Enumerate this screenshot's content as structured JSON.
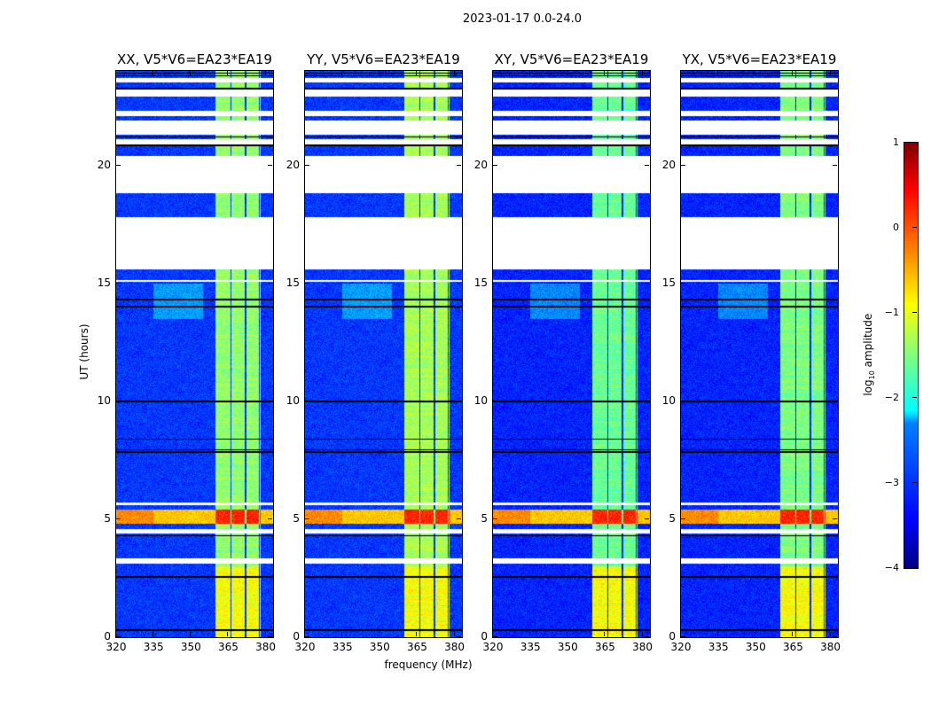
{
  "chart_data": {
    "type": "heatmap",
    "title": "2023-01-17 0.0-24.0",
    "xlabel": "frequency (MHz)",
    "ylabel": "UT (hours)",
    "xlim": [
      320,
      383
    ],
    "ylim": [
      0,
      24
    ],
    "xticks": [
      "320",
      "335",
      "350",
      "365",
      "380"
    ],
    "xtick_values": [
      320,
      335,
      350,
      365,
      380
    ],
    "yticks": [
      "0",
      "5",
      "10",
      "15",
      "20"
    ],
    "ytick_values": [
      0,
      5,
      10,
      15,
      20
    ],
    "colormap": "jet",
    "colorbar": {
      "label_main": "log",
      "label_sub": "10",
      "label_rest": " amplitude",
      "clim": [
        -4,
        1
      ],
      "ticks": [
        "1",
        "0",
        "−1",
        "−2",
        "−3",
        "−4"
      ],
      "tick_values": [
        1,
        0,
        -1,
        -2,
        -3,
        -4
      ]
    },
    "panels": [
      {
        "title": "XX, V5*V6=EA23*EA19",
        "band_level": -1.4,
        "background": -3.1
      },
      {
        "title": "YY, V5*V6=EA23*EA19",
        "band_level": -1.3,
        "background": -3.1
      },
      {
        "title": "XY, V5*V6=EA23*EA19",
        "band_level": -1.6,
        "background": -3.2
      },
      {
        "title": "YX, V5*V6=EA23*EA19",
        "band_level": -1.5,
        "background": -3.2
      }
    ],
    "features": {
      "rfi_band_mhz": [
        360,
        378
      ],
      "band_dividers_mhz": [
        366,
        372,
        377.5
      ],
      "bright_interval_hours": [
        4.8,
        5.4
      ],
      "bright_level": -0.4,
      "bright_band_level": 0.2,
      "early_band_level": -0.9,
      "early_hours": [
        0,
        3
      ],
      "flagged_hours": [
        [
          3.1,
          3.35
        ],
        [
          4.4,
          4.6
        ],
        [
          5.6,
          5.7
        ],
        [
          15.05,
          15.15
        ],
        [
          15.6,
          17.8
        ],
        [
          18.8,
          20.4
        ],
        [
          20.9,
          21.1
        ],
        [
          21.3,
          21.9
        ],
        [
          22.1,
          22.3
        ],
        [
          22.9,
          23.2
        ],
        [
          23.5,
          23.7
        ]
      ],
      "black_line_hours": [
        0.3,
        2.55,
        4.3,
        7.85,
        7.95,
        8.4,
        10.0,
        14.0,
        14.3,
        20.85,
        21.2,
        23.25,
        23.8,
        23.9
      ]
    }
  }
}
